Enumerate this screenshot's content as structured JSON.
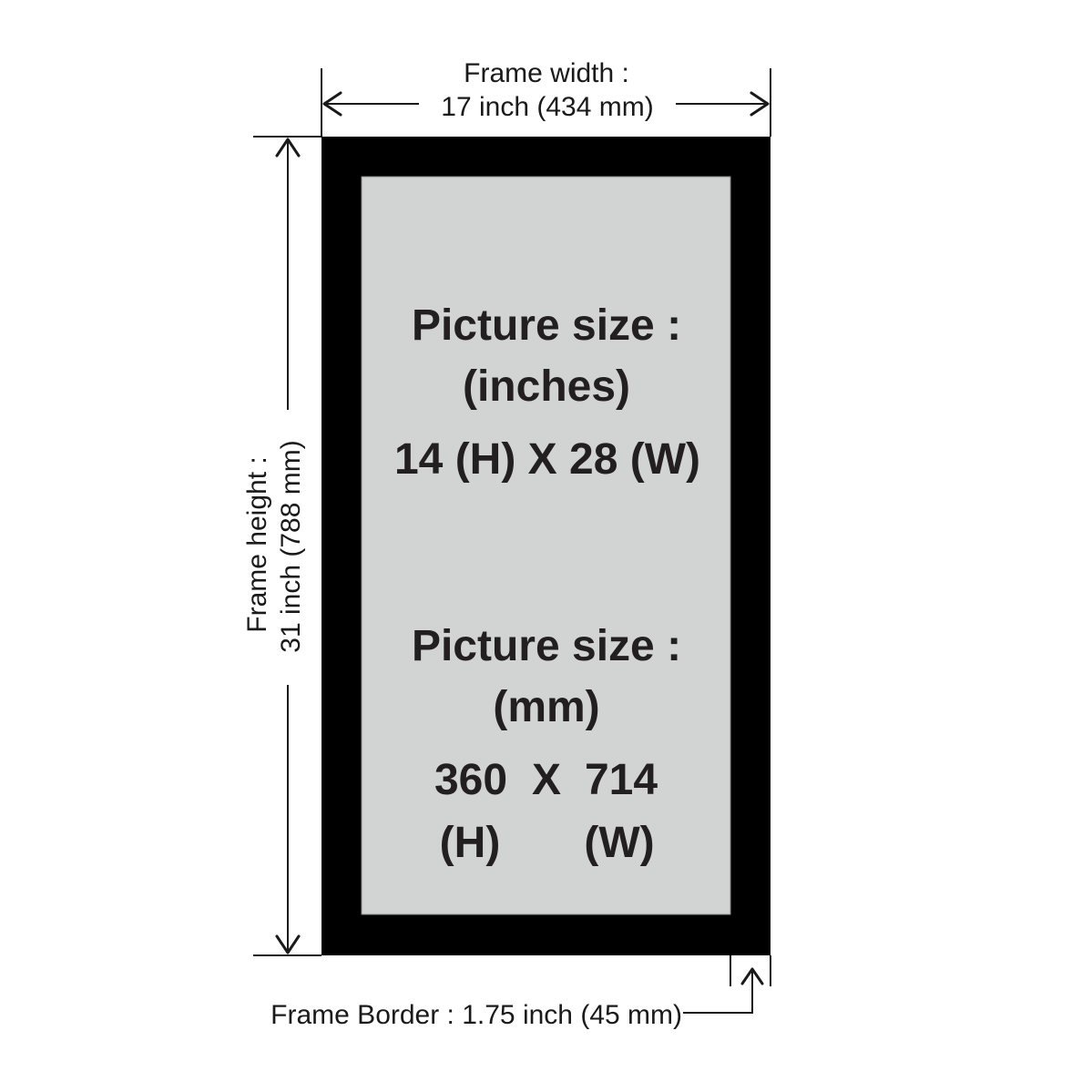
{
  "frame_width": {
    "label": "Frame width :",
    "value": "17 inch (434 mm)"
  },
  "frame_height": {
    "label": "Frame height :",
    "value": "31 inch (788 mm)"
  },
  "frame_border": {
    "label": "Frame Border : 1.75 inch (45 mm)"
  },
  "picture_inches": {
    "heading": "Picture size :",
    "unit": "(inches)",
    "dimensions": "14 (H) X 28 (W)"
  },
  "picture_mm": {
    "heading": "Picture size :",
    "unit": "(mm)",
    "height_value": "360",
    "separator": "X",
    "width_value": "714",
    "height_label": "(H)",
    "width_label": "(W)"
  },
  "colors": {
    "frame": "#000000",
    "picture_area": "#d1d4d3",
    "text": "#231f20"
  }
}
